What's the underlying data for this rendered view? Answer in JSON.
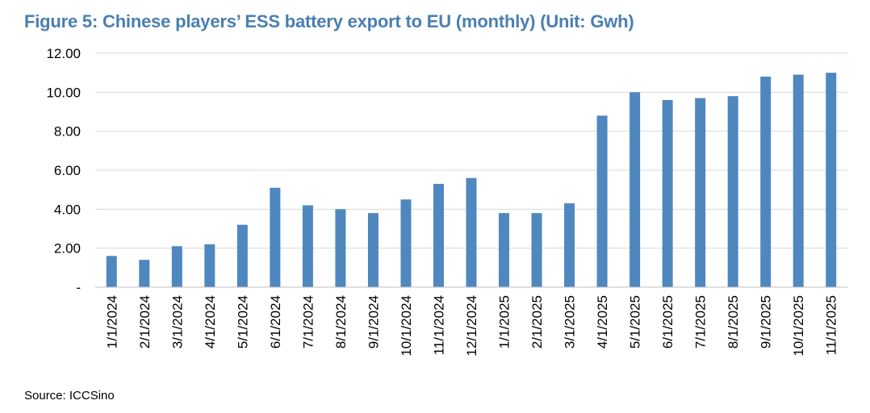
{
  "chart_data": {
    "type": "bar",
    "title": "Figure 5: Chinese players’ ESS battery export to EU (monthly) (Unit: Gwh)",
    "source": "Source: ICCSino",
    "xlabel": "",
    "ylabel": "",
    "ylim": [
      0,
      12
    ],
    "yticks": [
      0,
      2,
      4,
      6,
      8,
      10,
      12
    ],
    "ytick_labels": [
      "-",
      "2.00",
      "4.00",
      "6.00",
      "8.00",
      "10.00",
      "12.00"
    ],
    "grid": true,
    "bar_color": "#4f87bf",
    "categories": [
      "1/1/2024",
      "2/1/2024",
      "3/1/2024",
      "4/1/2024",
      "5/1/2024",
      "6/1/2024",
      "7/1/2024",
      "8/1/2024",
      "9/1/2024",
      "10/1/2024",
      "11/1/2024",
      "12/1/2024",
      "1/1/2025",
      "2/1/2025",
      "3/1/2025",
      "4/1/2025",
      "5/1/2025",
      "6/1/2025",
      "7/1/2025",
      "8/1/2025",
      "9/1/2025",
      "10/1/2025",
      "11/1/2025"
    ],
    "values": [
      1.6,
      1.4,
      2.1,
      2.2,
      3.2,
      5.1,
      4.2,
      4.0,
      3.8,
      4.5,
      5.3,
      5.6,
      3.8,
      3.8,
      4.3,
      8.8,
      10.0,
      9.6,
      9.7,
      9.8,
      10.8,
      10.9,
      11.0
    ]
  }
}
